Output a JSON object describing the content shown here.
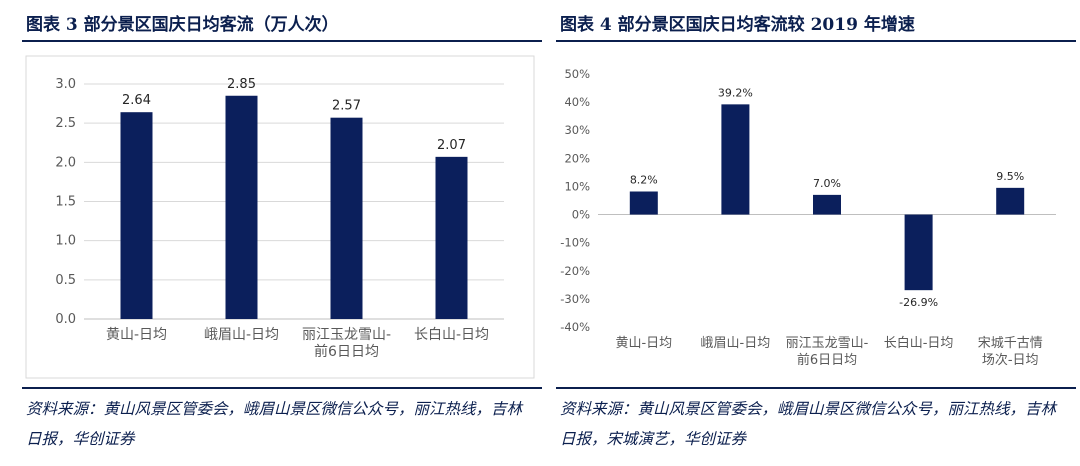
{
  "figures": [
    {
      "title": "图表 3   部分景区国庆日均客流（万人次）",
      "source": "资料来源：黄山风景区管委会，峨眉山景区微信公众号，丽江热线，吉林日报，华创证券"
    },
    {
      "title": "图表 4   部分景区国庆日均客流较 2019 年增速",
      "source": "资料来源：黄山风景区管委会，峨眉山景区微信公众号，丽江热线，吉林日报，宋城演艺，华创证券"
    }
  ],
  "chart_data": [
    {
      "type": "bar",
      "categories": [
        [
          "黄山-日均"
        ],
        [
          "峨眉山-日均"
        ],
        [
          "丽江玉龙雪山-",
          "前6日日均"
        ],
        [
          "长白山-日均"
        ]
      ],
      "values": [
        2.64,
        2.85,
        2.57,
        2.07
      ],
      "data_labels": [
        "2.64",
        "2.85",
        "2.57",
        "2.07"
      ],
      "yticks": [
        "0.0",
        "0.5",
        "1.0",
        "1.5",
        "2.0",
        "2.5",
        "3.0"
      ],
      "ylim": [
        0,
        3.0
      ],
      "grid": true,
      "bar_color": "#0b1f5c"
    },
    {
      "type": "bar",
      "categories": [
        [
          "黄山-日均"
        ],
        [
          "峨眉山-日均"
        ],
        [
          "丽江玉龙雪山-",
          "前6日日均"
        ],
        [
          "长白山-日均"
        ],
        [
          "宋城千古情",
          "场次-日均"
        ]
      ],
      "values": [
        8.2,
        39.2,
        7.0,
        -26.9,
        9.5
      ],
      "data_labels": [
        "8.2%",
        "39.2%",
        "7.0%",
        "-26.9%",
        "9.5%"
      ],
      "yticks": [
        "-40%",
        "-30%",
        "-20%",
        "-10%",
        "0%",
        "10%",
        "20%",
        "30%",
        "40%",
        "50%"
      ],
      "ylim": [
        -40,
        50
      ],
      "grid": false,
      "bar_color": "#0b1f5c"
    }
  ]
}
